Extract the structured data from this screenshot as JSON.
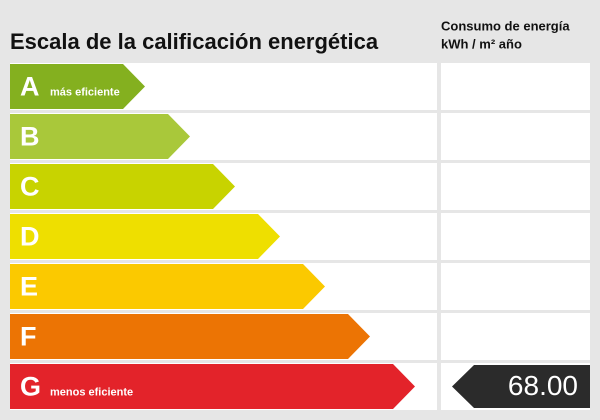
{
  "header": {
    "title": "Escala de la calificación energética",
    "column_title": "Consumo de energía",
    "column_unit": "kWh / m² año"
  },
  "ratings": [
    {
      "letter": "A",
      "color": "#84b01f",
      "note": "más eficiente"
    },
    {
      "letter": "B",
      "color": "#a9c83a"
    },
    {
      "letter": "C",
      "color": "#c8d300"
    },
    {
      "letter": "D",
      "color": "#eedf00"
    },
    {
      "letter": "E",
      "color": "#fbc900"
    },
    {
      "letter": "F",
      "color": "#ec7404"
    },
    {
      "letter": "G",
      "color": "#e3232a",
      "note": "menos eficiente",
      "value": "68.00"
    }
  ]
}
